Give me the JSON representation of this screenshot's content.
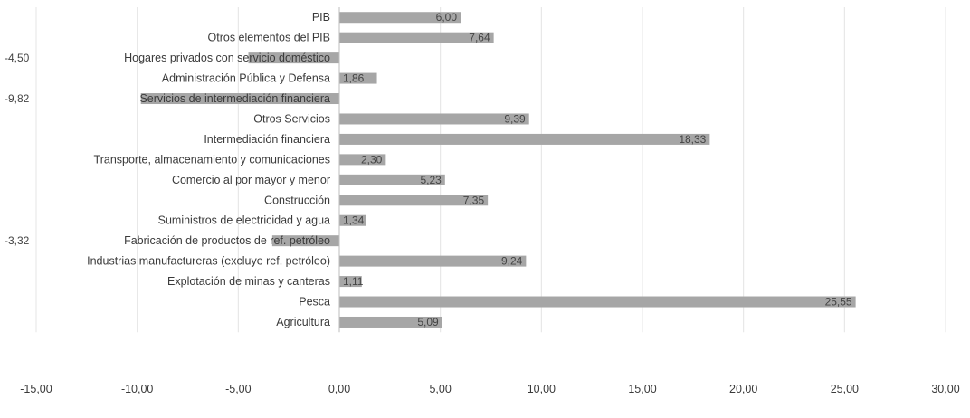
{
  "chart_data": {
    "type": "bar",
    "orientation": "horizontal",
    "title": "",
    "xlabel": "",
    "ylabel": "",
    "categories": [
      "PIB",
      "Otros elementos del PIB",
      "Hogares privados con servicio doméstico",
      "Administración Pública y Defensa",
      "Servicios de intermediación financiera",
      "Otros Servicios",
      "Intermediación financiera",
      "Transporte, almacenamiento y comunicaciones",
      "Comercio al por mayor y menor",
      "Construcción",
      "Suministros de electricidad y agua",
      "Fabricación de productos de ref. petróleo",
      "Industrias manufactureras (excluye ref. petróleo)",
      "Explotación de minas y canteras",
      "Pesca",
      "Agricultura"
    ],
    "values": [
      6.0,
      7.64,
      -4.5,
      1.86,
      -9.82,
      9.39,
      18.33,
      2.3,
      5.23,
      7.35,
      1.34,
      -3.32,
      9.24,
      1.11,
      25.55,
      5.09
    ],
    "value_labels": [
      "6,00",
      "7,64",
      "-4,50",
      "1,86",
      "-9,82",
      "9,39",
      "18,33",
      "2,30",
      "5,23",
      "7,35",
      "1,34",
      "-3,32",
      "9,24",
      "1,11",
      "25,55",
      "5,09"
    ],
    "xlim": [
      -15,
      30
    ],
    "x_ticks": [
      -15,
      -10,
      -5,
      0,
      5,
      10,
      15,
      20,
      25,
      30
    ],
    "x_tick_labels": [
      "-15,00",
      "-10,00",
      "-5,00",
      "0,00",
      "5,00",
      "10,00",
      "15,00",
      "20,00",
      "25,00",
      "30,00"
    ],
    "bar_color": "#a6a6a6",
    "grid": true,
    "legend": "none"
  }
}
